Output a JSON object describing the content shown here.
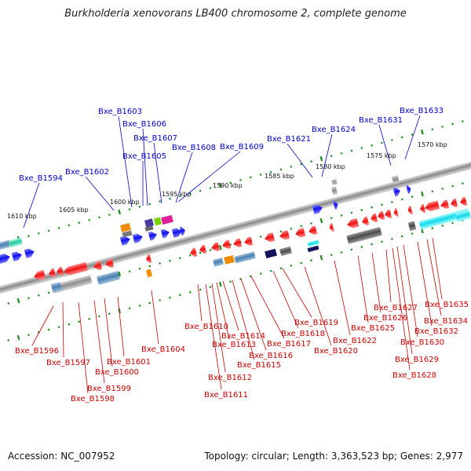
{
  "title": "Burkholderia xenovorans LB400 chromosome 2, complete genome",
  "footer": {
    "accession": "Accession: NC_007952",
    "topology": "Topology: circular; Length: 3,363,523 bp; Genes: 2,977"
  },
  "colors": {
    "forward_gene": "#1010ee",
    "reverse_gene": "#ee1111",
    "forward_label": "#0000cc",
    "reverse_label": "#cc0000",
    "backbone": "#8a8a8a",
    "scale_dots": "#1a8a1a"
  },
  "scale_labels": [
    "1570 kbp",
    "1575 kbp",
    "1580 kbp",
    "1585 kbp",
    "1590 kbp",
    "1595 kbp",
    "1600 kbp",
    "1605 kbp",
    "1610 kbp"
  ],
  "forward_labels": [
    "Bxe_B1594",
    "Bxe_B1602",
    "Bxe_B1603",
    "Bxe_B1605",
    "Bxe_B1606",
    "Bxe_B1607",
    "Bxe_B1608",
    "Bxe_B1609",
    "Bxe_B1621",
    "Bxe_B1624",
    "Bxe_B1631",
    "Bxe_B1633"
  ],
  "reverse_labels": [
    "Bxe_B1596",
    "Bxe_B1597",
    "Bxe_B1598",
    "Bxe_B1599",
    "Bxe_B1600",
    "Bxe_B1601",
    "Bxe_B1604",
    "Bxe_B1610",
    "Bxe_B1611",
    "Bxe_B1612",
    "Bxe_B1613",
    "Bxe_B1614",
    "Bxe_B1615",
    "Bxe_B1616",
    "Bxe_B1617",
    "Bxe_B1618",
    "Bxe_B1619",
    "Bxe_B1620",
    "Bxe_B1622",
    "Bxe_B1625",
    "Bxe_B1626",
    "Bxe_B1627",
    "Bxe_B1628",
    "Bxe_B1629",
    "Bxe_B1630",
    "Bxe_B1632",
    "Bxe_B1634",
    "Bxe_B1635"
  ]
}
